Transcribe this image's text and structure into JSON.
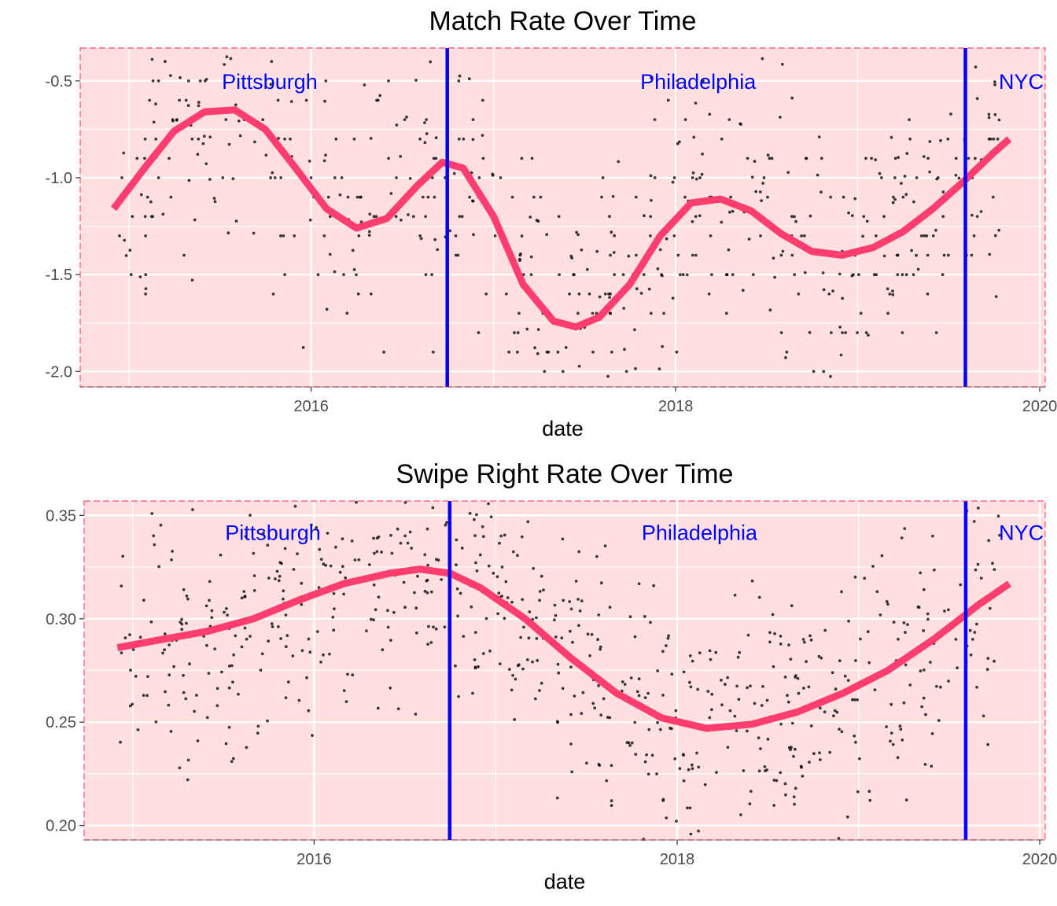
{
  "chart_data": [
    {
      "type": "scatter",
      "title": "Match Rate Over Time",
      "xlabel": "date",
      "ylabel": "",
      "x_ticks": [
        "2016",
        "2018",
        "2020"
      ],
      "y_ticks": [
        "-0.5",
        "-1.0",
        "-1.5",
        "-2.0"
      ],
      "xlim": [
        "2014-09-25",
        "2020-01-12"
      ],
      "ylim": [
        -2.08,
        -0.33
      ],
      "grid": true,
      "panel_background": "#ffe0e0",
      "panel_border_color": "#ff4d7a",
      "points_color": "#000000",
      "smooth": {
        "color": "#ff3d6e",
        "points": [
          [
            "2014-12-01",
            -1.16
          ],
          [
            "2015-02-01",
            -0.95
          ],
          [
            "2015-04-01",
            -0.76
          ],
          [
            "2015-06-01",
            -0.66
          ],
          [
            "2015-08-01",
            -0.65
          ],
          [
            "2015-10-01",
            -0.75
          ],
          [
            "2015-12-01",
            -0.95
          ],
          [
            "2016-02-01",
            -1.16
          ],
          [
            "2016-04-01",
            -1.26
          ],
          [
            "2016-06-01",
            -1.21
          ],
          [
            "2016-08-01",
            -1.04
          ],
          [
            "2016-09-20",
            -0.92
          ],
          [
            "2016-11-01",
            -0.95
          ],
          [
            "2017-01-01",
            -1.2
          ],
          [
            "2017-03-01",
            -1.55
          ],
          [
            "2017-05-01",
            -1.74
          ],
          [
            "2017-06-15",
            -1.77
          ],
          [
            "2017-08-01",
            -1.72
          ],
          [
            "2017-10-01",
            -1.55
          ],
          [
            "2017-12-01",
            -1.3
          ],
          [
            "2018-02-01",
            -1.13
          ],
          [
            "2018-04-01",
            -1.11
          ],
          [
            "2018-06-01",
            -1.17
          ],
          [
            "2018-08-01",
            -1.29
          ],
          [
            "2018-10-01",
            -1.38
          ],
          [
            "2018-12-01",
            -1.4
          ],
          [
            "2019-02-01",
            -1.36
          ],
          [
            "2019-04-01",
            -1.28
          ],
          [
            "2019-06-01",
            -1.16
          ],
          [
            "2019-08-01",
            -1.02
          ],
          [
            "2019-10-01",
            -0.87
          ],
          [
            "2019-11-01",
            -0.8
          ]
        ]
      },
      "vertical_lines": [
        {
          "x": "2016-09-30",
          "color": "#0000ff"
        },
        {
          "x": "2019-08-05",
          "color": "#0000ff"
        }
      ],
      "annotations": [
        {
          "text": "Pittsburgh",
          "x": "2015-10-10",
          "y": -0.5
        },
        {
          "text": "Philadelphia",
          "x": "2018-02-15",
          "y": -0.5
        },
        {
          "text": "NYC",
          "x": "2019-11-25",
          "y": -0.5
        }
      ],
      "point_count": 600,
      "point_x_range": [
        "2014-12-01",
        "2019-10-15"
      ]
    },
    {
      "type": "scatter",
      "title": "Swipe Right Rate Over Time",
      "xlabel": "date",
      "ylabel": "",
      "x_ticks": [
        "2016",
        "2018",
        "2020"
      ],
      "y_ticks": [
        "0.35",
        "0.30",
        "0.25",
        "0.20"
      ],
      "xlim": [
        "2014-09-25",
        "2020-01-12"
      ],
      "ylim": [
        0.193,
        0.357
      ],
      "grid": true,
      "panel_background": "#ffe0e0",
      "panel_border_color": "#ff4d7a",
      "points_color": "#000000",
      "smooth": {
        "color": "#ff3d6e",
        "points": [
          [
            "2014-12-01",
            0.286
          ],
          [
            "2015-03-01",
            0.29
          ],
          [
            "2015-06-01",
            0.294
          ],
          [
            "2015-09-01",
            0.3
          ],
          [
            "2015-12-01",
            0.309
          ],
          [
            "2016-03-01",
            0.317
          ],
          [
            "2016-06-01",
            0.322
          ],
          [
            "2016-08-01",
            0.324
          ],
          [
            "2016-10-01",
            0.322
          ],
          [
            "2016-12-01",
            0.315
          ],
          [
            "2017-03-01",
            0.3
          ],
          [
            "2017-06-01",
            0.281
          ],
          [
            "2017-09-01",
            0.264
          ],
          [
            "2017-12-01",
            0.252
          ],
          [
            "2018-03-01",
            0.247
          ],
          [
            "2018-06-01",
            0.249
          ],
          [
            "2018-09-01",
            0.255
          ],
          [
            "2018-12-01",
            0.264
          ],
          [
            "2019-03-01",
            0.275
          ],
          [
            "2019-06-01",
            0.29
          ],
          [
            "2019-09-01",
            0.307
          ],
          [
            "2019-11-01",
            0.317
          ]
        ]
      },
      "vertical_lines": [
        {
          "x": "2016-09-30",
          "color": "#0000ff"
        },
        {
          "x": "2019-08-05",
          "color": "#0000ff"
        }
      ],
      "annotations": [
        {
          "text": "Pittsburgh",
          "x": "2015-10-10",
          "y": 0.342
        },
        {
          "text": "Philadelphia",
          "x": "2018-02-15",
          "y": 0.342
        },
        {
          "text": "NYC",
          "x": "2019-11-25",
          "y": 0.342
        }
      ],
      "point_count": 700,
      "point_x_range": [
        "2014-12-01",
        "2019-10-15"
      ]
    }
  ]
}
